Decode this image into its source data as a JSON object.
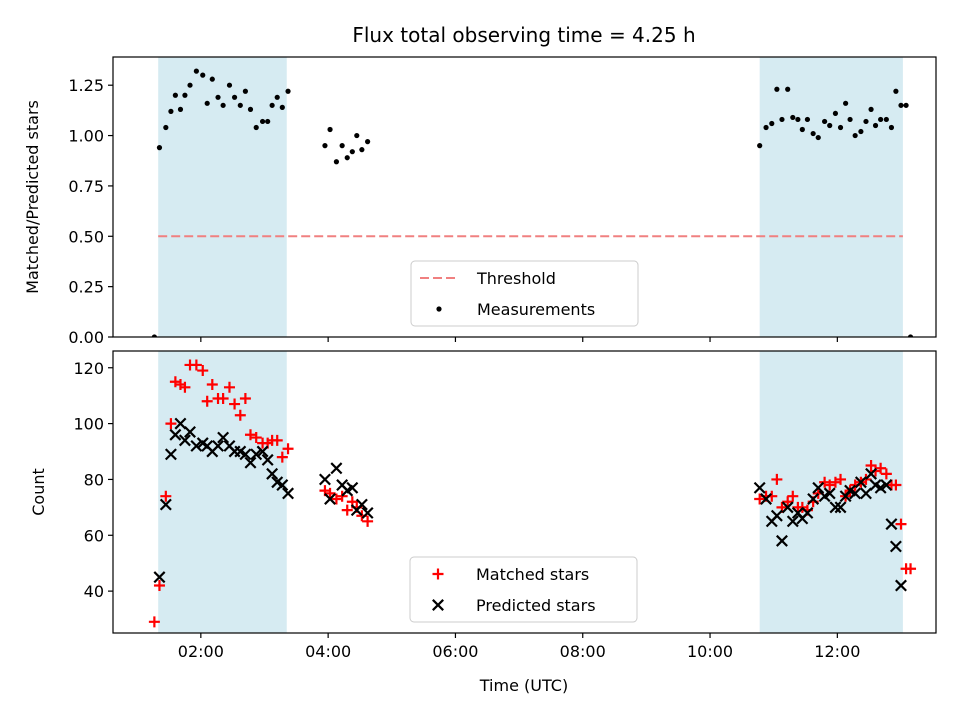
{
  "figure": {
    "title": "Flux total observing time = 4.25 h",
    "xlabel": "Time (UTC)",
    "colors": {
      "shade": "#add8e6",
      "threshold": "#f08080",
      "matched": "#ff0000",
      "predicted": "#000000",
      "measure": "#000000"
    }
  },
  "chart_data": [
    {
      "type": "scatter",
      "title": "Flux total observing time = 4.25 h",
      "ylabel": "Matched/Predicted stars",
      "xlabel": "",
      "xlim": [
        0.62,
        13.55
      ],
      "ylim": [
        0,
        1.39
      ],
      "yticks": [
        0,
        0.25,
        0.5,
        0.75,
        1.0,
        1.25
      ],
      "ytick_labels": [
        "0.00",
        "0.25",
        "0.50",
        "0.75",
        "1.00",
        "1.25"
      ],
      "xticks": [
        2,
        4,
        6,
        8,
        10,
        12
      ],
      "shaded_intervals": [
        [
          1.33,
          3.35
        ],
        [
          10.78,
          13.03
        ]
      ],
      "threshold": {
        "name": "Threshold",
        "value": 0.5,
        "x_range": [
          1.33,
          13.03
        ]
      },
      "legend": {
        "position": "lower-center",
        "entries": [
          "Threshold",
          "Measurements"
        ]
      },
      "series": [
        {
          "name": "Measurements",
          "marker": "dot",
          "points": [
            [
              1.27,
              0.0
            ],
            [
              1.35,
              0.94
            ],
            [
              1.45,
              1.04
            ],
            [
              1.53,
              1.12
            ],
            [
              1.6,
              1.2
            ],
            [
              1.68,
              1.13
            ],
            [
              1.75,
              1.2
            ],
            [
              1.83,
              1.25
            ],
            [
              1.93,
              1.32
            ],
            [
              2.03,
              1.3
            ],
            [
              2.1,
              1.16
            ],
            [
              2.18,
              1.28
            ],
            [
              2.27,
              1.19
            ],
            [
              2.35,
              1.15
            ],
            [
              2.45,
              1.25
            ],
            [
              2.53,
              1.19
            ],
            [
              2.62,
              1.15
            ],
            [
              2.7,
              1.22
            ],
            [
              2.78,
              1.13
            ],
            [
              2.87,
              1.04
            ],
            [
              2.97,
              1.07
            ],
            [
              3.05,
              1.07
            ],
            [
              3.12,
              1.15
            ],
            [
              3.2,
              1.19
            ],
            [
              3.28,
              1.14
            ],
            [
              3.37,
              1.22
            ],
            [
              3.95,
              0.95
            ],
            [
              4.03,
              1.03
            ],
            [
              4.13,
              0.87
            ],
            [
              4.22,
              0.95
            ],
            [
              4.3,
              0.89
            ],
            [
              4.38,
              0.92
            ],
            [
              4.45,
              1.0
            ],
            [
              4.53,
              0.93
            ],
            [
              4.62,
              0.97
            ],
            [
              10.78,
              0.95
            ],
            [
              10.88,
              1.04
            ],
            [
              10.97,
              1.06
            ],
            [
              11.05,
              1.23
            ],
            [
              11.13,
              1.08
            ],
            [
              11.22,
              1.23
            ],
            [
              11.3,
              1.09
            ],
            [
              11.38,
              1.08
            ],
            [
              11.45,
              1.03
            ],
            [
              11.53,
              1.08
            ],
            [
              11.62,
              1.01
            ],
            [
              11.7,
              0.99
            ],
            [
              11.8,
              1.07
            ],
            [
              11.88,
              1.05
            ],
            [
              11.97,
              1.11
            ],
            [
              12.05,
              1.04
            ],
            [
              12.13,
              1.16
            ],
            [
              12.2,
              1.08
            ],
            [
              12.28,
              1.0
            ],
            [
              12.37,
              1.02
            ],
            [
              12.45,
              1.07
            ],
            [
              12.53,
              1.13
            ],
            [
              12.6,
              1.05
            ],
            [
              12.68,
              1.08
            ],
            [
              12.77,
              1.08
            ],
            [
              12.85,
              1.04
            ],
            [
              12.92,
              1.22
            ],
            [
              13.0,
              1.15
            ],
            [
              13.08,
              1.15
            ],
            [
              13.15,
              0.0
            ]
          ]
        }
      ]
    },
    {
      "type": "scatter",
      "title": "",
      "ylabel": "Count",
      "xlabel": "Time (UTC)",
      "xlim": [
        0.62,
        13.55
      ],
      "ylim": [
        25,
        126
      ],
      "yticks": [
        40,
        60,
        80,
        100,
        120
      ],
      "ytick_labels": [
        "40",
        "60",
        "80",
        "100",
        "120"
      ],
      "xticks": [
        2,
        4,
        6,
        8,
        10,
        12
      ],
      "xtick_labels": [
        "02:00",
        "04:00",
        "06:00",
        "08:00",
        "10:00",
        "12:00"
      ],
      "shaded_intervals": [
        [
          1.33,
          3.35
        ],
        [
          10.78,
          13.03
        ]
      ],
      "legend": {
        "position": "lower-center",
        "entries": [
          "Matched stars",
          "Predicted stars"
        ]
      },
      "series": [
        {
          "name": "Matched stars",
          "marker": "plus",
          "points": [
            [
              1.27,
              29
            ],
            [
              1.35,
              42
            ],
            [
              1.45,
              74
            ],
            [
              1.53,
              100
            ],
            [
              1.6,
              115
            ],
            [
              1.68,
              114
            ],
            [
              1.75,
              113
            ],
            [
              1.83,
              121
            ],
            [
              1.93,
              121
            ],
            [
              2.03,
              119
            ],
            [
              2.1,
              108
            ],
            [
              2.18,
              114
            ],
            [
              2.27,
              109
            ],
            [
              2.35,
              109
            ],
            [
              2.45,
              113
            ],
            [
              2.53,
              107
            ],
            [
              2.62,
              103
            ],
            [
              2.7,
              109
            ],
            [
              2.78,
              96
            ],
            [
              2.87,
              95
            ],
            [
              2.97,
              93
            ],
            [
              3.05,
              93
            ],
            [
              3.12,
              94
            ],
            [
              3.2,
              94
            ],
            [
              3.28,
              88
            ],
            [
              3.37,
              91
            ],
            [
              3.95,
              76
            ],
            [
              4.03,
              75
            ],
            [
              4.13,
              73
            ],
            [
              4.22,
              74
            ],
            [
              4.3,
              69
            ],
            [
              4.38,
              72
            ],
            [
              4.45,
              70
            ],
            [
              4.53,
              67
            ],
            [
              4.62,
              65
            ],
            [
              10.78,
              73
            ],
            [
              10.88,
              74
            ],
            [
              10.97,
              74
            ],
            [
              11.05,
              80
            ],
            [
              11.13,
              70
            ],
            [
              11.22,
              72
            ],
            [
              11.3,
              74
            ],
            [
              11.38,
              70
            ],
            [
              11.45,
              70
            ],
            [
              11.53,
              69
            ],
            [
              11.62,
              72
            ],
            [
              11.7,
              75
            ],
            [
              11.8,
              79
            ],
            [
              11.88,
              78
            ],
            [
              11.97,
              79
            ],
            [
              12.05,
              80
            ],
            [
              12.13,
              74
            ],
            [
              12.2,
              76
            ],
            [
              12.28,
              78
            ],
            [
              12.37,
              79
            ],
            [
              12.45,
              80
            ],
            [
              12.53,
              85
            ],
            [
              12.6,
              83
            ],
            [
              12.68,
              84
            ],
            [
              12.77,
              82
            ],
            [
              12.85,
              78
            ],
            [
              12.92,
              78
            ],
            [
              13.0,
              64
            ],
            [
              13.08,
              48
            ],
            [
              13.15,
              48
            ]
          ]
        },
        {
          "name": "Predicted stars",
          "marker": "cross",
          "points": [
            [
              1.35,
              45
            ],
            [
              1.45,
              71
            ],
            [
              1.53,
              89
            ],
            [
              1.6,
              96
            ],
            [
              1.68,
              100
            ],
            [
              1.75,
              94
            ],
            [
              1.83,
              97
            ],
            [
              1.93,
              92
            ],
            [
              2.03,
              93
            ],
            [
              2.1,
              92
            ],
            [
              2.18,
              90
            ],
            [
              2.27,
              92
            ],
            [
              2.35,
              95
            ],
            [
              2.45,
              92
            ],
            [
              2.53,
              90
            ],
            [
              2.62,
              90
            ],
            [
              2.7,
              89
            ],
            [
              2.78,
              86
            ],
            [
              2.87,
              89
            ],
            [
              2.97,
              90
            ],
            [
              3.05,
              87
            ],
            [
              3.12,
              82
            ],
            [
              3.2,
              79
            ],
            [
              3.28,
              78
            ],
            [
              3.37,
              75
            ],
            [
              3.95,
              80
            ],
            [
              4.03,
              73
            ],
            [
              4.13,
              84
            ],
            [
              4.22,
              78
            ],
            [
              4.3,
              76
            ],
            [
              4.38,
              77
            ],
            [
              4.45,
              69
            ],
            [
              4.53,
              71
            ],
            [
              4.62,
              68
            ],
            [
              10.78,
              77
            ],
            [
              10.88,
              73
            ],
            [
              10.97,
              65
            ],
            [
              11.05,
              67
            ],
            [
              11.13,
              58
            ],
            [
              11.22,
              70
            ],
            [
              11.3,
              65
            ],
            [
              11.38,
              68
            ],
            [
              11.45,
              66
            ],
            [
              11.53,
              68
            ],
            [
              11.62,
              73
            ],
            [
              11.7,
              77
            ],
            [
              11.8,
              74
            ],
            [
              11.88,
              75
            ],
            [
              11.97,
              70
            ],
            [
              12.05,
              70
            ],
            [
              12.13,
              74
            ],
            [
              12.2,
              76
            ],
            [
              12.28,
              75
            ],
            [
              12.37,
              79
            ],
            [
              12.45,
              75
            ],
            [
              12.53,
              82
            ],
            [
              12.6,
              78
            ],
            [
              12.68,
              77
            ],
            [
              12.77,
              78
            ],
            [
              12.85,
              64
            ],
            [
              12.92,
              56
            ],
            [
              13.0,
              42
            ]
          ]
        }
      ]
    }
  ]
}
